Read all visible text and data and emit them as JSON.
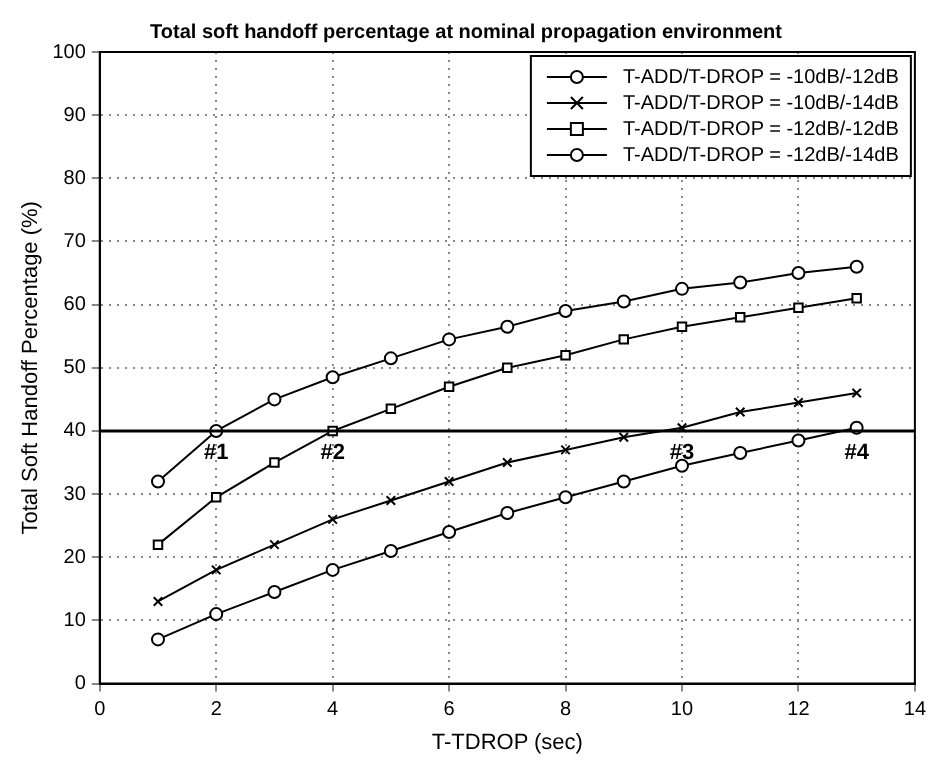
{
  "chart_data": {
    "type": "line",
    "title": "Total soft handoff percentage at nominal propagation environment",
    "xlabel": "T-TDROP (sec)",
    "ylabel": "Total Soft Handoff Percentage (%)",
    "x": [
      1,
      2,
      3,
      4,
      5,
      6,
      7,
      8,
      9,
      10,
      11,
      12,
      13
    ],
    "series": [
      {
        "name": "T-ADD/T-DROP = -10dB/-12dB",
        "color": "#000000",
        "marker": "circle",
        "values": [
          7,
          11,
          14.5,
          18,
          21,
          24,
          27,
          29.5,
          32,
          34.5,
          36.5,
          38.5,
          40.5
        ]
      },
      {
        "name": "T-ADD/T-DROP = -10dB/-14dB",
        "color": "#000000",
        "marker": "cross",
        "values": [
          13,
          18,
          22,
          26,
          29,
          32,
          35,
          37,
          39,
          40.5,
          43,
          44.5,
          46
        ]
      },
      {
        "name": "T-ADD/T-DROP = -12dB/-12dB",
        "color": "#000000",
        "marker": "square",
        "values": [
          22,
          29.5,
          35,
          40,
          43.5,
          47,
          50,
          52,
          54.5,
          56.5,
          58,
          59.5,
          61
        ]
      },
      {
        "name": "T-ADD/T-DROP = -12dB/-14dB",
        "color": "#000000",
        "marker": "circle",
        "values": [
          32,
          40,
          45,
          48.5,
          51.5,
          54.5,
          56.5,
          59,
          60.5,
          62.5,
          63.5,
          65,
          66
        ]
      }
    ],
    "xlim": [
      0,
      14
    ],
    "xticks": [
      0,
      2,
      4,
      6,
      8,
      10,
      12,
      14
    ],
    "ylim": [
      0,
      100
    ],
    "yticks": [
      0,
      10,
      20,
      30,
      40,
      50,
      60,
      70,
      80,
      90,
      100
    ],
    "grid": true,
    "legend": "top right",
    "ref_lines": [
      {
        "axis": "y",
        "value": 40,
        "color": "#000000"
      }
    ],
    "annotations": [
      {
        "text": "#1",
        "x": 2,
        "y": 40
      },
      {
        "text": "#2",
        "x": 4,
        "y": 40
      },
      {
        "text": "#3",
        "x": 10,
        "y": 40
      },
      {
        "text": "#4",
        "x": 13,
        "y": 40
      }
    ]
  }
}
